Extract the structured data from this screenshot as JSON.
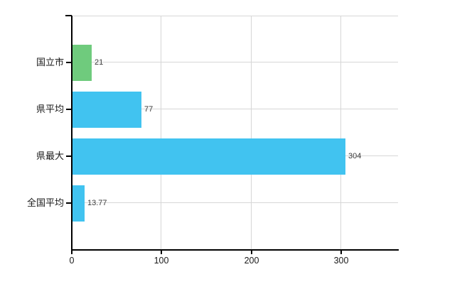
{
  "chart_data": {
    "type": "bar",
    "orientation": "horizontal",
    "title": "",
    "xlabel": "",
    "ylabel": "",
    "categories": [
      "国立市",
      "県平均",
      "県最大",
      "全国平均"
    ],
    "values": [
      21,
      77,
      304,
      13.77
    ],
    "value_labels": [
      "21",
      "77",
      "304",
      "13.77"
    ],
    "bar_colors": [
      "#6fcb7d",
      "#41c3f0",
      "#41c3f0",
      "#41c3f0"
    ],
    "x_ticks": [
      0,
      100,
      200,
      300
    ],
    "x_tick_labels": [
      "0",
      "100",
      "200",
      "300"
    ],
    "xlim": [
      0,
      363
    ],
    "grid": true,
    "legend": null,
    "colors": {
      "axis": "#000000",
      "gridline": "#d6d6d6",
      "category_label": "#1a1a1a",
      "value_label": "#3a3a3a",
      "tick_label": "#1a1a1a",
      "background": "#ffffff"
    }
  }
}
